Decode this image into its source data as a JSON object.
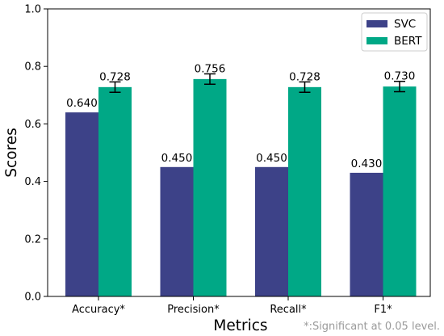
{
  "chart_data": {
    "type": "bar",
    "categories": [
      "Accuracy*",
      "Precision*",
      "Recall*",
      "F1*"
    ],
    "series": [
      {
        "name": "SVC",
        "values": [
          0.64,
          0.45,
          0.45,
          0.43
        ],
        "color": "#3d4288",
        "labels": [
          "0.640",
          "0.450",
          "0.450",
          "0.430"
        ]
      },
      {
        "name": "BERT",
        "values": [
          0.728,
          0.756,
          0.728,
          0.73
        ],
        "color": "#00a886",
        "labels": [
          "0.728",
          "0.756",
          "0.728",
          "0.730"
        ],
        "error": [
          0.018,
          0.018,
          0.018,
          0.018
        ]
      }
    ],
    "xlabel": "Metrics",
    "ylabel": "Scores",
    "ylim": [
      0.0,
      1.0
    ],
    "yticks": [
      "0.0",
      "0.2",
      "0.4",
      "0.6",
      "0.8",
      "1.0"
    ],
    "grid": false,
    "legend_position": "top-right",
    "footnote": "*:Significant at 0.05 level."
  }
}
